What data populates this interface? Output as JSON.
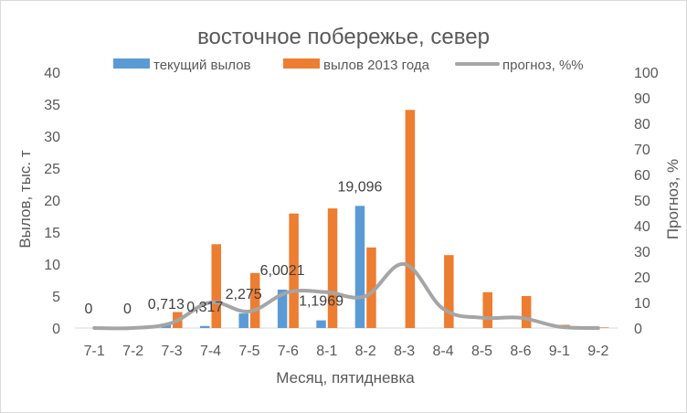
{
  "chart_data": {
    "type": "bar",
    "title": "восточное побережье, север",
    "xlabel": "Месяц, пятидневка",
    "ylabel": "Вылов, тыс. т",
    "y2label": "Прогноз, %",
    "categories": [
      "7-1",
      "7-2",
      "7-3",
      "7-4",
      "7-5",
      "7-6",
      "8-1",
      "8-2",
      "8-3",
      "8-4",
      "8-5",
      "8-6",
      "9-1",
      "9-2"
    ],
    "ylim": [
      0,
      40
    ],
    "y_ticks": [
      "0",
      "5",
      "10",
      "15",
      "20",
      "25",
      "30",
      "35",
      "40"
    ],
    "y2lim": [
      0,
      100
    ],
    "y2_ticks": [
      "0",
      "10",
      "20",
      "30",
      "40",
      "50",
      "60",
      "70",
      "80",
      "90",
      "100"
    ],
    "grid": false,
    "legend_position": "top",
    "series": [
      {
        "name": "текущий вылов",
        "type": "bar",
        "axis": "left",
        "color": "#5B9BD5",
        "values": [
          0,
          0,
          0.713,
          0.317,
          2.275,
          6.0021,
          1.1969,
          19.096,
          null,
          null,
          null,
          null,
          null,
          null
        ],
        "labels": [
          "0",
          "0",
          "0,713",
          "0,317",
          "2,275",
          "6,0021",
          "1,1969",
          "19,096",
          "",
          "",
          "",
          "",
          "",
          ""
        ]
      },
      {
        "name": "вылов 2013 года",
        "type": "bar",
        "axis": "left",
        "color": "#ED7D31",
        "values": [
          0,
          0,
          2.5,
          13.1,
          8.6,
          17.9,
          18.7,
          12.6,
          34.1,
          11.4,
          5.6,
          5.0,
          0.5,
          0.1
        ]
      },
      {
        "name": "прогноз, %%",
        "type": "line",
        "axis": "right",
        "color": "#A5A5A5",
        "values": [
          0,
          0,
          2,
          10,
          6.5,
          14,
          14,
          12.5,
          25,
          7.5,
          4,
          4,
          0.5,
          0
        ]
      }
    ]
  }
}
